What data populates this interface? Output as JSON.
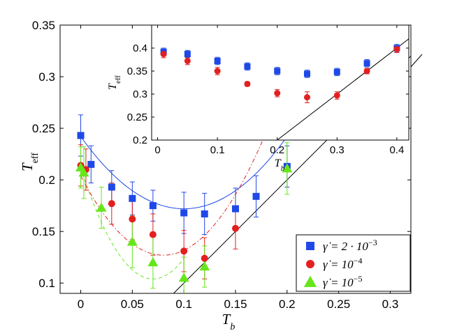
{
  "chart_data": [
    {
      "type": "scatter",
      "panel": "main",
      "xlabel": "T_b",
      "ylabel": "T_eff",
      "xlim": [
        -0.02,
        0.32
      ],
      "ylim": [
        0.09,
        0.35
      ],
      "xticks": [
        0,
        0.05,
        0.1,
        0.15,
        0.2,
        0.25,
        0.3
      ],
      "xtick_labels": [
        "0",
        "0.05",
        "0.1",
        "0.15",
        "0.2",
        "0.25",
        "0.3"
      ],
      "yticks": [
        0.1,
        0.15,
        0.2,
        0.25,
        0.3,
        0.35
      ],
      "ytick_labels": [
        "0.1",
        "0.15",
        "0.2",
        "0.25",
        "0.3",
        "0.35"
      ],
      "legend_position": "bottom-right",
      "series": [
        {
          "name": "γ̇ = 2·10⁻³",
          "label_parts": [
            "γ̇ = 2 · 10",
            "−3"
          ],
          "color": "#1f48e8",
          "marker": "square",
          "x": [
            0,
            0.01,
            0.03,
            0.05,
            0.07,
            0.1,
            0.12,
            0.15,
            0.17,
            0.2
          ],
          "y": [
            0.243,
            0.215,
            0.193,
            0.182,
            0.175,
            0.168,
            0.167,
            0.172,
            0.184,
            0.213
          ],
          "err": [
            0.02,
            0.018,
            0.016,
            0.016,
            0.015,
            0.02,
            0.02,
            0.02,
            0.02,
            0.02
          ],
          "fit_curve": {
            "style": "solid",
            "min_x": 0.1,
            "min_y": 0.172,
            "curvature": 7
          }
        },
        {
          "name": "γ̇ = 10⁻⁴",
          "label_parts": [
            "γ̇ = 10",
            "−4"
          ],
          "color": "#e41f1f",
          "marker": "circle",
          "x": [
            0,
            0.005,
            0.03,
            0.05,
            0.07,
            0.1,
            0.12,
            0.15
          ],
          "y": [
            0.214,
            0.21,
            0.177,
            0.162,
            0.147,
            0.131,
            0.124,
            0.153
          ],
          "err": [
            0.02,
            0.02,
            0.02,
            0.02,
            0.02,
            0.02,
            0.02,
            0.02
          ],
          "fit_curve": {
            "style": "dashdot",
            "min_x": 0.08,
            "min_y": 0.127,
            "curvature": 12,
            "x_range": [
              0.0,
              0.2
            ]
          }
        },
        {
          "name": "γ̇ = 10⁻⁵",
          "label_parts": [
            "γ̇ = 10",
            "−5"
          ],
          "color": "#66e61a",
          "marker": "triangle",
          "x": [
            0,
            0.003,
            0.02,
            0.05,
            0.07,
            0.1,
            0.12,
            0.2
          ],
          "y": [
            0.212,
            0.207,
            0.173,
            0.14,
            0.12,
            0.105,
            0.116,
            0.211
          ],
          "err": [
            0.02,
            0.025,
            0.02,
            0.025,
            0.025,
            0.02,
            0.02,
            0.025
          ],
          "fit_curve": {
            "style": "dashed",
            "min_x": 0.07,
            "min_y": 0.104,
            "curvature": 22,
            "x_range": [
              0.0,
              0.1
            ]
          }
        }
      ],
      "reference_line": {
        "description": "T_eff = T_b",
        "slope": 1,
        "intercept": 0,
        "color": "#000000"
      }
    },
    {
      "type": "scatter",
      "panel": "inset",
      "xlabel": "T_b",
      "ylabel": "T_eff",
      "xlim": [
        -0.01,
        0.42
      ],
      "ylim": [
        0.2,
        0.45
      ],
      "xticks": [
        0,
        0.1,
        0.2,
        0.3,
        0.4
      ],
      "xtick_labels": [
        "0",
        "0.1",
        "0.2",
        "0.3",
        "0.4"
      ],
      "yticks": [
        0.2,
        0.25,
        0.3,
        0.35,
        0.4
      ],
      "ytick_labels": [
        "0.2",
        "0.25",
        "0.3",
        "0.35",
        "0.4"
      ],
      "series": [
        {
          "name": "γ̇ = 2·10⁻³",
          "color": "#1f48e8",
          "marker": "square",
          "x": [
            0.01,
            0.05,
            0.1,
            0.15,
            0.2,
            0.25,
            0.3,
            0.35,
            0.4
          ],
          "y": [
            0.392,
            0.387,
            0.372,
            0.36,
            0.35,
            0.344,
            0.348,
            0.367,
            0.4
          ],
          "err": [
            0.008,
            0.008,
            0.008,
            0.008,
            0.008,
            0.008,
            0.008,
            0.008,
            0.008
          ]
        },
        {
          "name": "γ̇ = 10⁻⁴",
          "color": "#e41f1f",
          "marker": "circle",
          "x": [
            0.01,
            0.05,
            0.1,
            0.15,
            0.2,
            0.25,
            0.3,
            0.35,
            0.4
          ],
          "y": [
            0.387,
            0.372,
            0.35,
            0.322,
            0.302,
            0.293,
            0.297,
            0.35,
            0.398
          ],
          "err": [
            0.008,
            0.008,
            0.008,
            0.005,
            0.008,
            0.012,
            0.008,
            0.006,
            0.008
          ]
        }
      ],
      "reference_line": {
        "description": "T_eff = T_b",
        "slope": 1,
        "intercept": 0,
        "color": "#000000"
      }
    }
  ]
}
